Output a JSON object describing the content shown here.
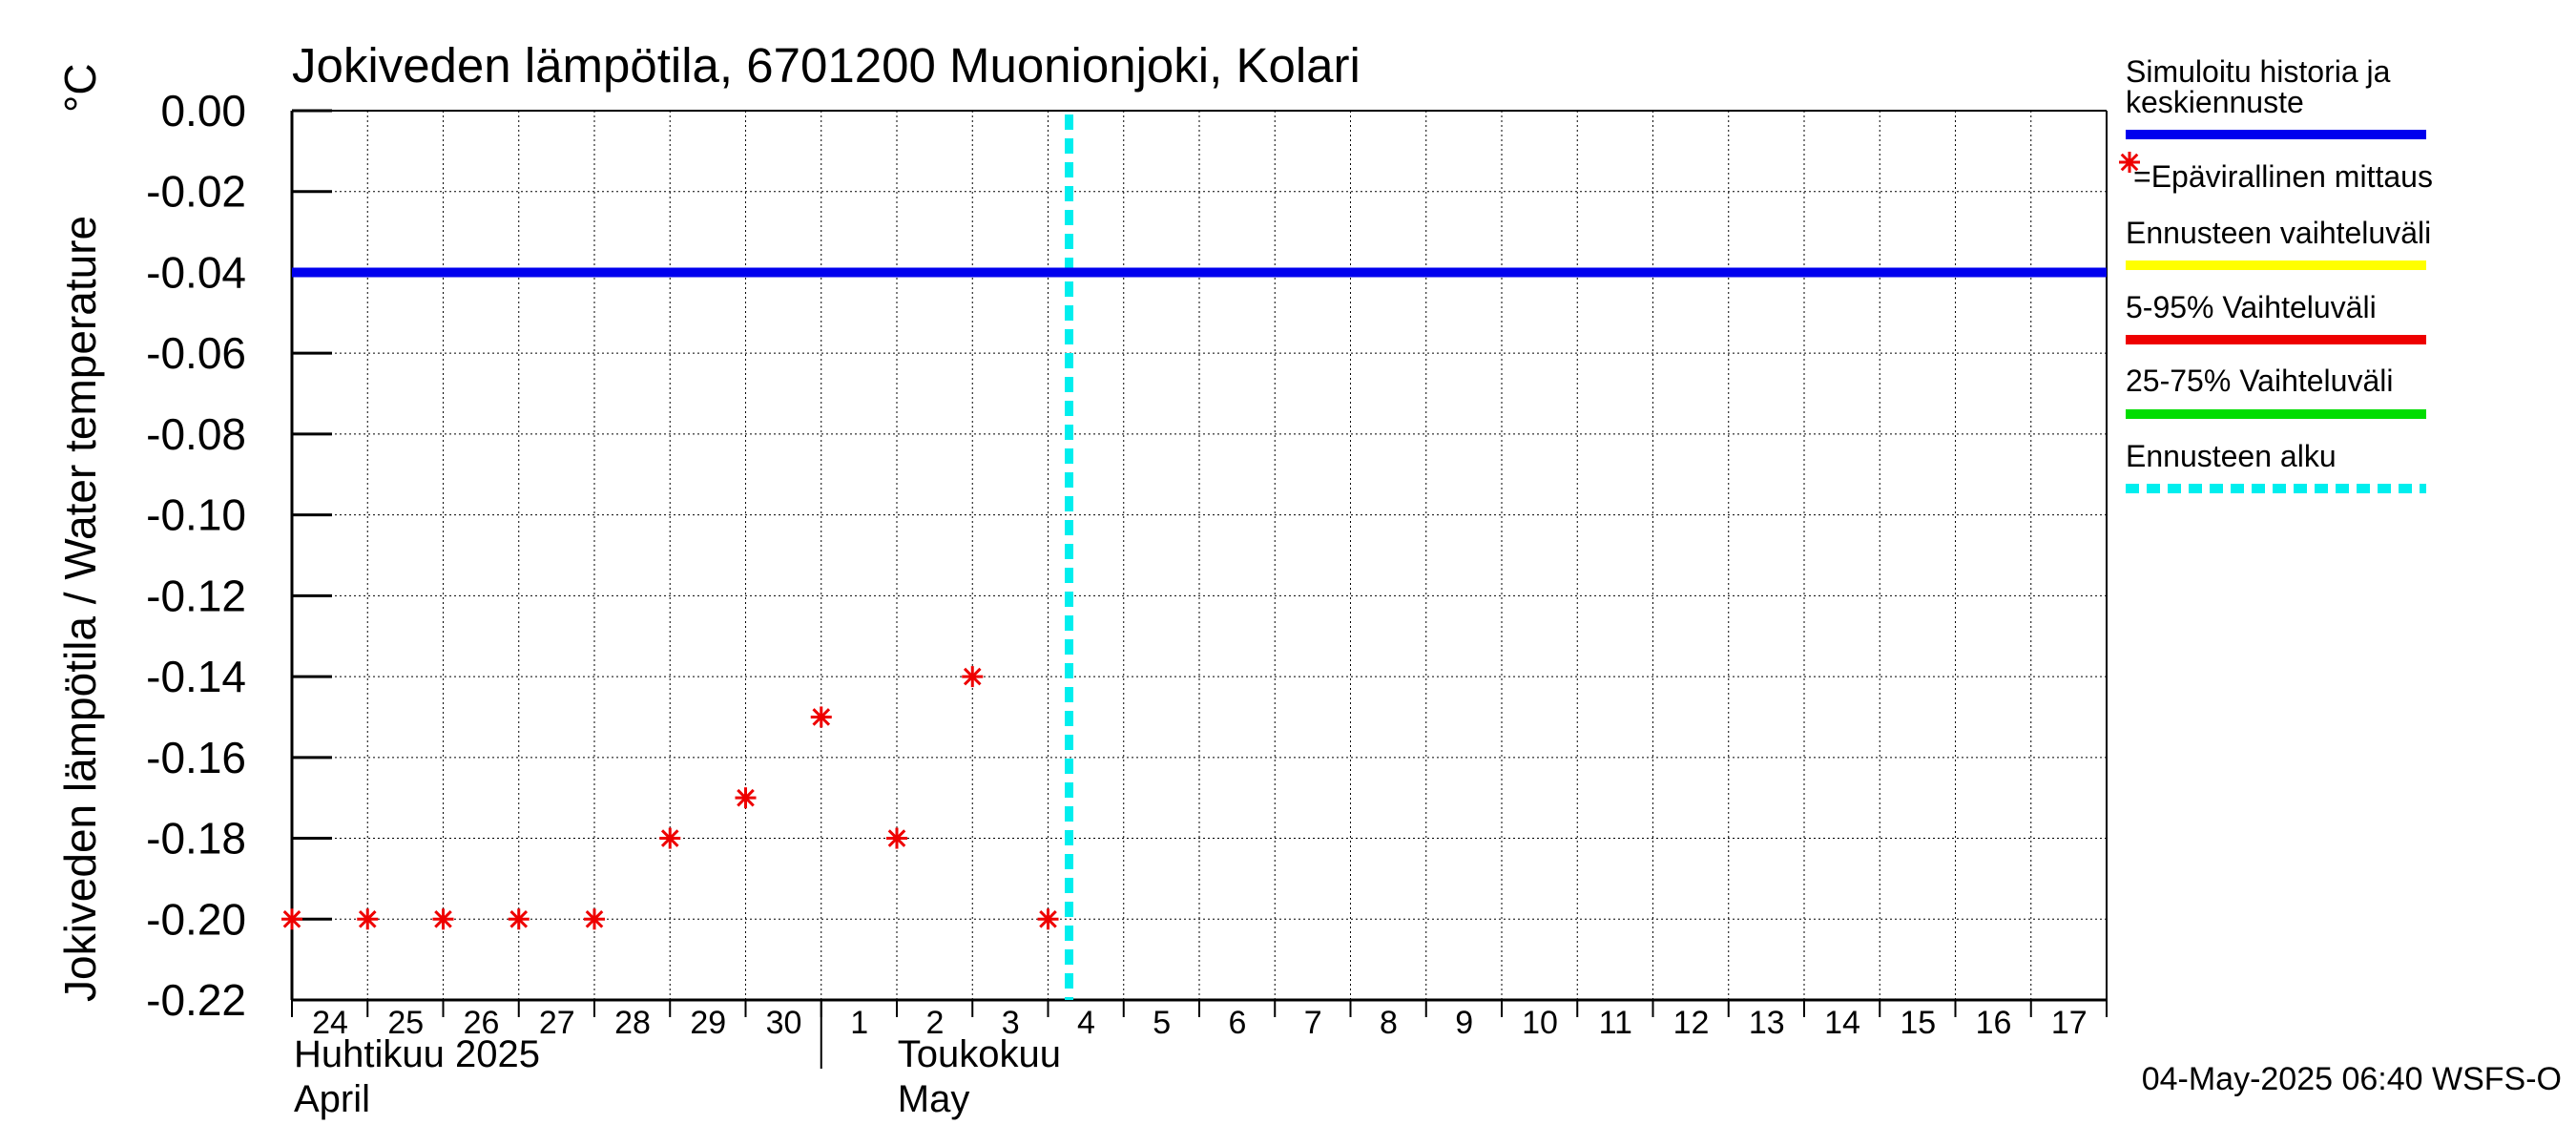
{
  "chart_data": {
    "type": "scatter",
    "title": "Jokiveden lämpötila, 6701200 Muonionjoki, Kolari",
    "ylabel": "Jokiveden lämpötila / Water temperature",
    "yunit": "°C",
    "ylim": [
      -0.22,
      0.0
    ],
    "yticks": [
      "0.00",
      "-0.02",
      "-0.04",
      "-0.06",
      "-0.08",
      "-0.10",
      "-0.12",
      "-0.14",
      "-0.16",
      "-0.18",
      "-0.20",
      "-0.22"
    ],
    "xlim": [
      "2025-04-24",
      "2025-05-18"
    ],
    "xticks": [
      "24",
      "25",
      "26",
      "27",
      "28",
      "29",
      "30",
      "1",
      "2",
      "3",
      "4",
      "5",
      "6",
      "7",
      "8",
      "9",
      "10",
      "11",
      "12",
      "13",
      "14",
      "15",
      "16",
      "17"
    ],
    "month_labels": [
      {
        "fi": "Huhtikuu  2025",
        "en": "April"
      },
      {
        "fi": "Toukokuu",
        "en": "May"
      }
    ],
    "grid": true,
    "series": [
      {
        "name": "Simuloitu historia ja keskiennuste",
        "type": "line",
        "color": "#0000ee",
        "x": [
          "2025-04-24",
          "2025-05-18"
        ],
        "y": [
          -0.04,
          -0.04
        ]
      },
      {
        "name": "=Epävirallinen mittaus",
        "type": "scatter",
        "color": "#ee0000",
        "x": [
          "2025-04-24",
          "2025-04-25",
          "2025-04-26",
          "2025-04-27",
          "2025-04-28",
          "2025-04-29",
          "2025-04-30",
          "2025-05-01",
          "2025-05-02",
          "2025-05-03",
          "2025-05-04"
        ],
        "y": [
          -0.2,
          -0.2,
          -0.2,
          -0.2,
          -0.2,
          -0.18,
          -0.17,
          -0.15,
          -0.18,
          -0.14,
          -0.2
        ]
      }
    ],
    "forecast_start": "2025-05-04 06:40",
    "legend": {
      "placement": "right",
      "items": [
        {
          "label": "Simuloitu historia ja keskiennuste",
          "color": "#0000ee",
          "style": "solid"
        },
        {
          "label": "=Epävirallinen mittaus",
          "color": "#ee0000",
          "style": "marker"
        },
        {
          "label": "Ennusteen vaihteluväli",
          "color": "#ffff00",
          "style": "solid"
        },
        {
          "label": "5-95% Vaihteluväli",
          "color": "#ee0000",
          "style": "solid"
        },
        {
          "label": "25-75% Vaihteluväli",
          "color": "#00dd00",
          "style": "solid"
        },
        {
          "label": "Ennusteen alku",
          "color": "#00eeee",
          "style": "dashed"
        }
      ]
    },
    "footer": "04-May-2025 06:40 WSFS-O"
  }
}
